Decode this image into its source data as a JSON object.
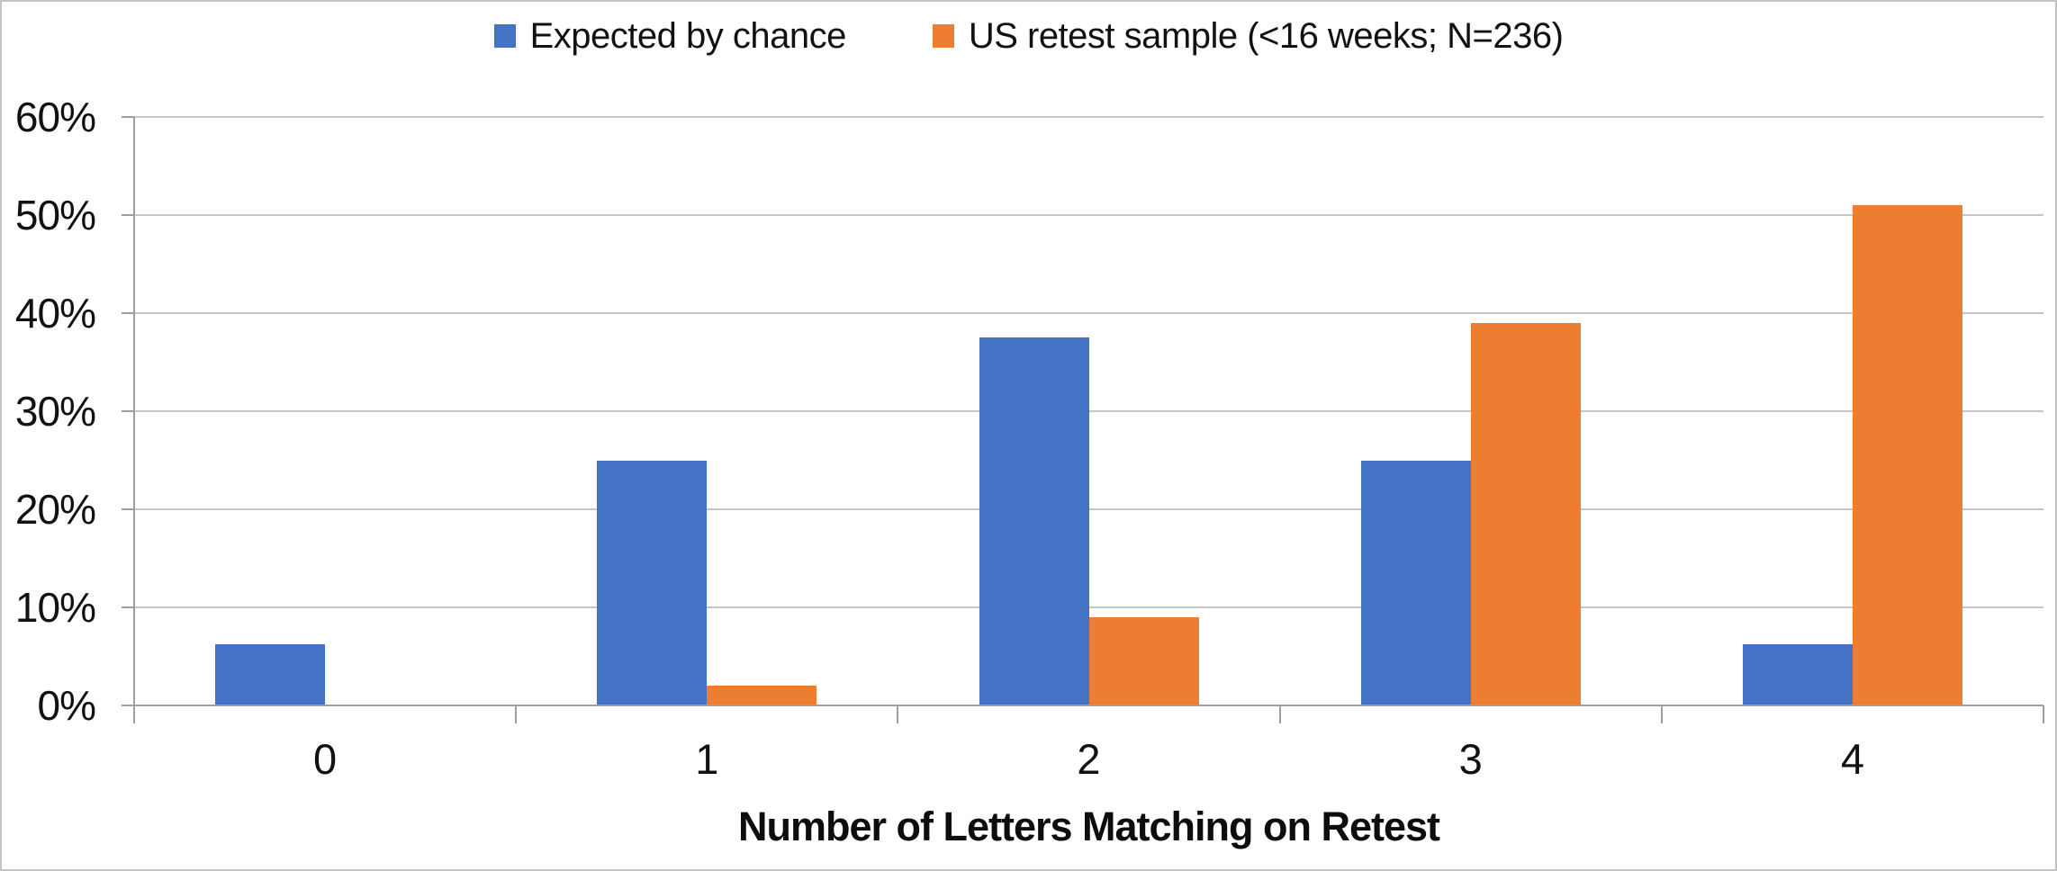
{
  "chart_data": {
    "type": "bar",
    "title": "",
    "categories": [
      "0",
      "1",
      "2",
      "3",
      "4"
    ],
    "series": [
      {
        "name": "Expected by chance",
        "color": "#4472C4",
        "values": [
          6.25,
          25,
          37.5,
          25,
          6.25
        ]
      },
      {
        "name": "US retest sample (<16 weeks; N=236)",
        "color": "#ED7D31",
        "values": [
          0,
          2,
          9,
          39,
          51
        ]
      }
    ],
    "xlabel": "Number of Letters Matching on Retest",
    "ylabel": "",
    "ylim": [
      0,
      60
    ],
    "ytick_step": 10,
    "ytick_labels": [
      "0%",
      "10%",
      "20%",
      "30%",
      "40%",
      "50%",
      "60%"
    ],
    "grid": "horizontal",
    "legend_position": "top",
    "bar_outline": "none"
  },
  "colors": {
    "gridline": "#c6c6c6",
    "axis": "#9e9e9e",
    "text": "#111111",
    "border": "#c2c2c2",
    "background": "#ffffff"
  }
}
